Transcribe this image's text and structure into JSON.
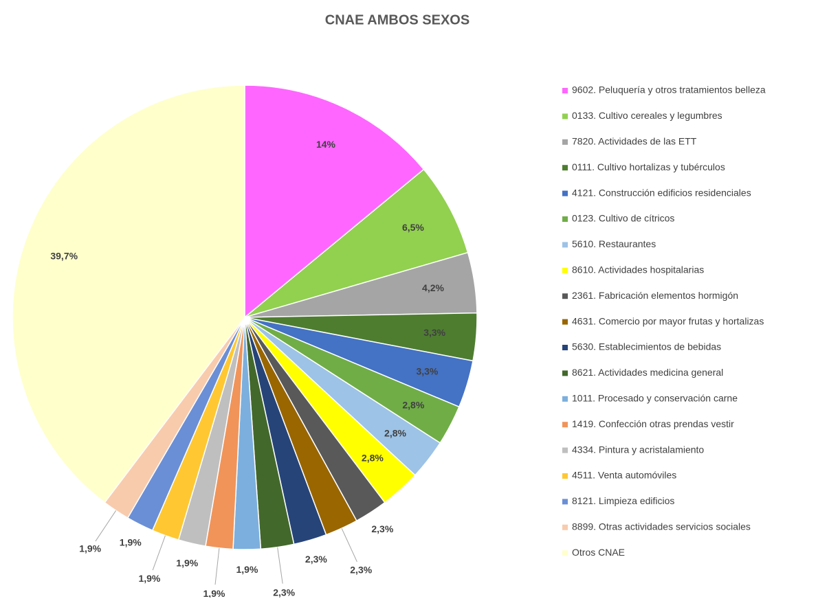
{
  "chart_data": {
    "type": "pie",
    "title": "CNAE AMBOS SEXOS",
    "categories": [
      "9602. Peluquería y otros tratamientos  belleza",
      "0133. Cultivo cereales y legumbres",
      "7820. Actividades de las ETT",
      "0111. Cultivo hortalizas y tubérculos",
      "4121. Construcción edificios residenciales",
      "0123. Cultivo de cítricos",
      "5610. Restaurantes",
      "8610. Actividades hospitalarias",
      "2361. Fabricación elementos hormigón",
      "4631. Comercio por mayor frutas y hortalizas",
      "5630. Establecimientos de bebidas",
      "8621. Actividades medicina general",
      "1011. Procesado y conservación carne",
      "1419. Confección otras prendas vestir",
      "4334. Pintura y acristalamiento",
      "4511. Venta automóviles",
      "8121. Limpieza edificios",
      "8899. Otras actividades servicios sociales",
      "Otros CNAE"
    ],
    "values": [
      14,
      6.5,
      4.2,
      3.3,
      3.3,
      2.8,
      2.8,
      2.8,
      2.3,
      2.3,
      2.3,
      2.3,
      1.9,
      1.9,
      1.9,
      1.9,
      1.9,
      1.9,
      39.7
    ],
    "value_labels": [
      "14%",
      "6,5%",
      "4,2%",
      "3,3%",
      "3,3%",
      "2,8%",
      "2,8%",
      "2,8%",
      "2,3%",
      "2,3%",
      "2,3%",
      "2,3%",
      "1,9%",
      "1,9%",
      "1,9%",
      "1,9%",
      "1,9%",
      "1,9%",
      "39,7%"
    ],
    "colors": [
      "#ff66ff",
      "#92d050",
      "#a5a5a5",
      "#4e7d30",
      "#4472c4",
      "#70ad47",
      "#9dc3e6",
      "#ffff00",
      "#595959",
      "#996600",
      "#264478",
      "#43682b",
      "#7cafdd",
      "#f0945a",
      "#bfbfbf",
      "#ffc832",
      "#6b8fd6",
      "#f8cbad",
      "#ffffcc"
    ],
    "legend": "right"
  }
}
